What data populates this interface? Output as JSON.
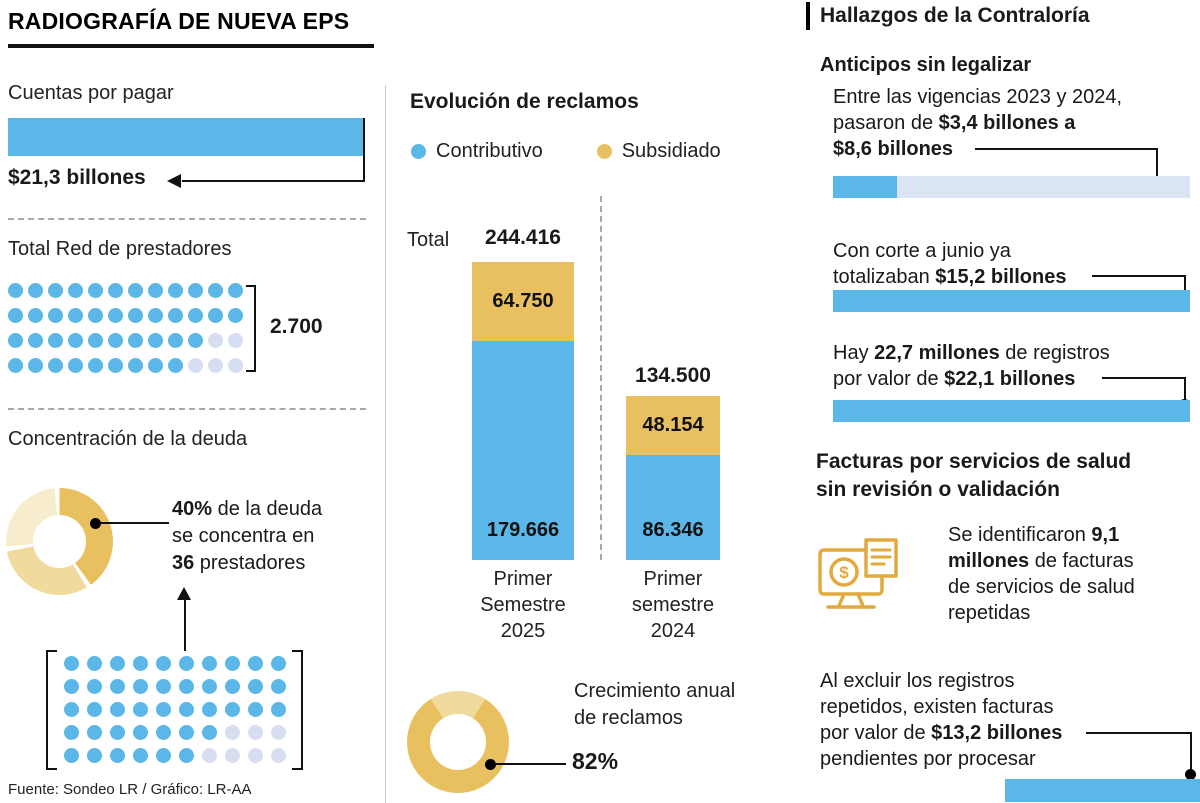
{
  "colors": {
    "blue": "#5BB7E8",
    "faded_blue": "#D8DEF2",
    "pale_blue_bar": "#D9E4F4",
    "gold": "#E9C05F",
    "gold_mid": "#F1DA9E",
    "gold_pale": "#F8ECCE",
    "icon_gold": "#E2A93C",
    "ink": "#111111"
  },
  "footer": {
    "source": "Fuente: Sondeo LR / Gráfico: LR-AA"
  },
  "left": {
    "title": "RADIOGRAFÍA DE NUEVA EPS",
    "cuentas": {
      "label": "Cuentas por pagar",
      "value": "$21,3 billones"
    },
    "red": {
      "label": "Total Red de prestadores",
      "value": "2.700",
      "dots": {
        "rows": [
          {
            "filled": 12,
            "faded": 0
          },
          {
            "filled": 12,
            "faded": 0
          },
          {
            "filled": 10,
            "faded": 2
          },
          {
            "filled": 9,
            "faded": 3
          }
        ]
      }
    },
    "deuda": {
      "label": "Concentración de la deuda",
      "callout": [
        {
          "t": "40%",
          "b": true
        },
        {
          "t": " de la deuda\nse concentra en\n",
          "b": false
        },
        {
          "t": "36",
          "b": true
        },
        {
          "t": " prestadores",
          "b": false
        }
      ],
      "dots": {
        "rows": [
          {
            "filled": 10,
            "faded": 0
          },
          {
            "filled": 10,
            "faded": 0
          },
          {
            "filled": 10,
            "faded": 0
          },
          {
            "filled": 7,
            "faded": 3
          },
          {
            "filled": 6,
            "faded": 4
          }
        ]
      }
    }
  },
  "middle": {
    "title": "Evolución de reclamos",
    "legend": [
      {
        "label": "Contributivo",
        "color": "#5BB7E8"
      },
      {
        "label": "Subsidiado",
        "color": "#E9C05F"
      }
    ],
    "total_label": "Total",
    "growth_label": "Crecimiento anual\nde reclamos"
  },
  "right": {
    "title": "Hallazgos de la Contraloría",
    "anticipos": {
      "title": "Anticipos sin legalizar",
      "p1": [
        {
          "t": "Entre las vigencias 2023 y 2024,\npasaron de ",
          "b": false
        },
        {
          "t": "$3,4 billones a\n$8,6 billones",
          "b": true
        }
      ],
      "p2": [
        {
          "t": "Con corte a junio ya\ntotalizaban ",
          "b": false
        },
        {
          "t": "$15,2 billones",
          "b": true
        }
      ],
      "p3": [
        {
          "t": "Hay ",
          "b": false
        },
        {
          "t": "22,7 millones",
          "b": true
        },
        {
          "t": " de registros\npor valor de ",
          "b": false
        },
        {
          "t": "$22,1 billones",
          "b": true
        }
      ]
    },
    "facturas": {
      "title": "Facturas por servicios de salud\nsin revisión o validación",
      "p1": [
        {
          "t": "Se identificaron ",
          "b": false
        },
        {
          "t": "9,1\nmillones",
          "b": true
        },
        {
          "t": " de facturas\nde servicios de salud\nrepetidas",
          "b": false
        }
      ],
      "p2": [
        {
          "t": "Al excluir los registros\nrepetidos, existen facturas\npor valor de ",
          "b": false
        },
        {
          "t": "$13,2 billones",
          "b": true
        },
        {
          "t": "\npendientes por procesar",
          "b": false
        }
      ]
    }
  },
  "chart_data": [
    {
      "id": "reclamos",
      "type": "bar",
      "stacked": true,
      "title": "Evolución de reclamos",
      "categories": [
        "Primer\nSemestre\n2025",
        "Primer\nsemestre\n2024"
      ],
      "series": [
        {
          "name": "Contributivo",
          "color": "#5BB7E8",
          "values": [
            179666,
            86346
          ],
          "labels": [
            "179.666",
            "86.346"
          ]
        },
        {
          "name": "Subsidiado",
          "color": "#E9C05F",
          "values": [
            64750,
            48154
          ],
          "labels": [
            "64.750",
            "48.154"
          ]
        }
      ],
      "totals": [
        244416,
        134500
      ],
      "total_labels": [
        "244.416",
        "134.500"
      ],
      "legend_position": "top",
      "ylim": [
        0,
        244416
      ]
    },
    {
      "id": "crecimiento",
      "type": "pie",
      "title": "Crecimiento anual de reclamos",
      "value": 82,
      "label": "82%",
      "slices": [
        {
          "name": "Crecimiento",
          "value": 82
        },
        {
          "name": "Resto",
          "value": 18
        }
      ]
    },
    {
      "id": "concentracion-deuda",
      "type": "pie",
      "title": "Concentración de la deuda",
      "value": 40,
      "label": "40%",
      "note": "40% de la deuda se concentra en 36 prestadores"
    },
    {
      "id": "cuentas-por-pagar",
      "type": "bar",
      "title": "Cuentas por pagar",
      "categories": [
        "Cuentas por pagar"
      ],
      "values": [
        21.3
      ],
      "value_label": "$21,3 billones"
    },
    {
      "id": "red-prestadores",
      "type": "pictogram",
      "title": "Total Red de prestadores",
      "value": 2700,
      "value_label": "2.700"
    },
    {
      "id": "anticipos-hallazgos",
      "type": "bar",
      "title": "Anticipos sin legalizar",
      "items": [
        {
          "text": "Entre las vigencias 2023 y 2024, pasaron de $3,4 billones a $8,6 billones",
          "values_billones": [
            3.4,
            8.6
          ]
        },
        {
          "text": "Con corte a junio ya totalizaban $15,2 billones",
          "values_billones": [
            15.2
          ]
        },
        {
          "text": "Hay 22,7 millones de registros por valor de $22,1 billones",
          "values_billones": [
            22.1
          ]
        },
        {
          "text": "Al excluir los registros repetidos, existen facturas por valor de $13,2 billones pendientes por procesar",
          "values_billones": [
            13.2
          ]
        }
      ]
    }
  ]
}
